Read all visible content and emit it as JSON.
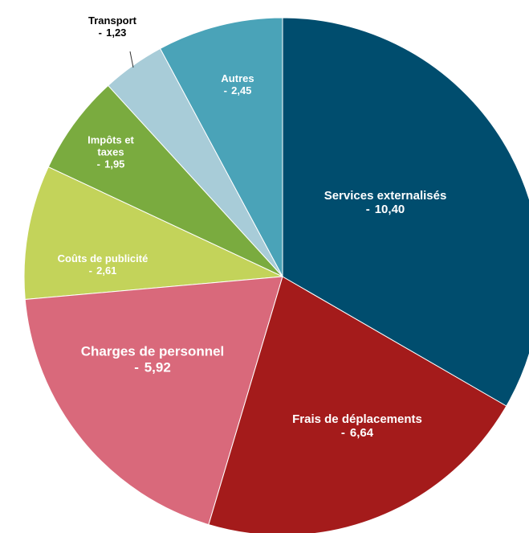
{
  "chart_data": {
    "type": "pie",
    "categories": [
      "Services externalisés",
      "Frais de déplacements",
      "Charges de personnel",
      "Coûts de publicité",
      "Impôts et taxes",
      "Transport",
      "Autres"
    ],
    "values": [
      10.4,
      6.64,
      5.92,
      2.61,
      1.95,
      1.23,
      2.45
    ],
    "value_labels": [
      "10,40",
      "6,64",
      "5,92",
      "2,61",
      "1,95",
      "1,23",
      "2,45"
    ],
    "label_prefix": "-",
    "colors": [
      "#004d6e",
      "#a41b1b",
      "#d9697b",
      "#c3d35a",
      "#7aab3f",
      "#a8ccd8",
      "#4aa3b8"
    ]
  }
}
